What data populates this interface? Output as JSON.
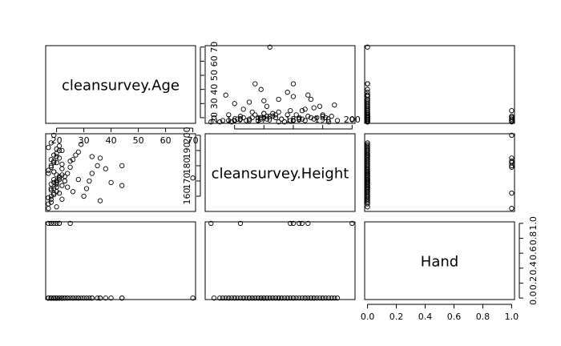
{
  "chart_data": {
    "type": "scatter",
    "subtype": "scatterplot-matrix",
    "grid": false,
    "marker": "open-circle",
    "colors": {
      "points": "#000000",
      "frame": "#000000",
      "background": "#ffffff"
    },
    "variables": [
      {
        "name": "cleansurvey.Age",
        "range": [
          16,
          71
        ],
        "ticks": [
          20,
          30,
          40,
          50,
          60,
          70
        ]
      },
      {
        "name": "cleansurvey.Height",
        "range": [
          150,
          201
        ],
        "ticks": [
          160,
          170,
          180,
          190,
          200
        ]
      },
      {
        "name": "Hand",
        "range": [
          -0.02,
          1.02
        ],
        "ticks": [
          0.0,
          0.2,
          0.4,
          0.6,
          0.8,
          1.0
        ],
        "tick_labels": [
          "0.0",
          "0.2",
          "0.4",
          "0.6",
          "0.8",
          "1.0"
        ]
      }
    ],
    "tick_axes": [
      {
        "side": "bottom",
        "var": 0,
        "panel": 0
      },
      {
        "side": "bottom",
        "var": 2,
        "panel": 2
      },
      {
        "side": "top",
        "var": 1,
        "panel": 1
      },
      {
        "side": "left",
        "var": 1,
        "panel": 1
      },
      {
        "side": "right",
        "var": 0,
        "panel": 0
      },
      {
        "side": "right",
        "var": 2,
        "panel": 2
      }
    ],
    "observations": {
      "age": [
        17,
        18,
        19,
        20,
        21,
        22,
        23,
        17,
        18,
        19,
        20,
        21,
        22,
        18,
        19,
        20,
        21,
        17,
        18,
        19,
        20,
        19,
        18,
        20,
        21,
        22,
        19,
        20,
        18,
        17,
        19,
        20,
        22,
        23,
        24,
        25,
        26,
        27,
        28,
        29,
        30,
        31,
        32,
        33,
        35,
        36,
        38,
        40,
        44,
        70,
        24,
        26,
        28,
        33,
        36,
        44,
        21,
        20,
        19,
        18,
        17,
        19,
        20,
        21,
        22,
        18,
        20,
        19,
        23,
        18,
        21,
        25,
        17,
        19,
        20,
        22,
        18
      ],
      "height": [
        175,
        160,
        165,
        170,
        185,
        190,
        170,
        155,
        158,
        162,
        168,
        172,
        178,
        180,
        182,
        186,
        190,
        192,
        195,
        200,
        188,
        176,
        164,
        166,
        171,
        181,
        183,
        153,
        156,
        159,
        161,
        163,
        167,
        173,
        175,
        179,
        184,
        187,
        189,
        194,
        160,
        165,
        170,
        175,
        180,
        185,
        178,
        169,
        167,
        172,
        166,
        163,
        171,
        186,
        157,
        180,
        193,
        174,
        169,
        168,
        177,
        187,
        191,
        162,
        158,
        184,
        182,
        176,
        170,
        165,
        173,
        183,
        152,
        171,
        169,
        174,
        179
      ],
      "hand": [
        0,
        0,
        0,
        0,
        1,
        0,
        0,
        0,
        0,
        0,
        0,
        0,
        0,
        1,
        0,
        0,
        0,
        0,
        0,
        1,
        0,
        0,
        0,
        0,
        0,
        0,
        0,
        0,
        0,
        0,
        0,
        0,
        0,
        0,
        0,
        0,
        0,
        0,
        0,
        0,
        0,
        0,
        0,
        0,
        0,
        0,
        0,
        0,
        0,
        0,
        0,
        0,
        0,
        0,
        0,
        0,
        0,
        0,
        0,
        0,
        0,
        0,
        0,
        1,
        0,
        0,
        1,
        0,
        0,
        0,
        0,
        1,
        1,
        0,
        0,
        0,
        1
      ]
    }
  }
}
